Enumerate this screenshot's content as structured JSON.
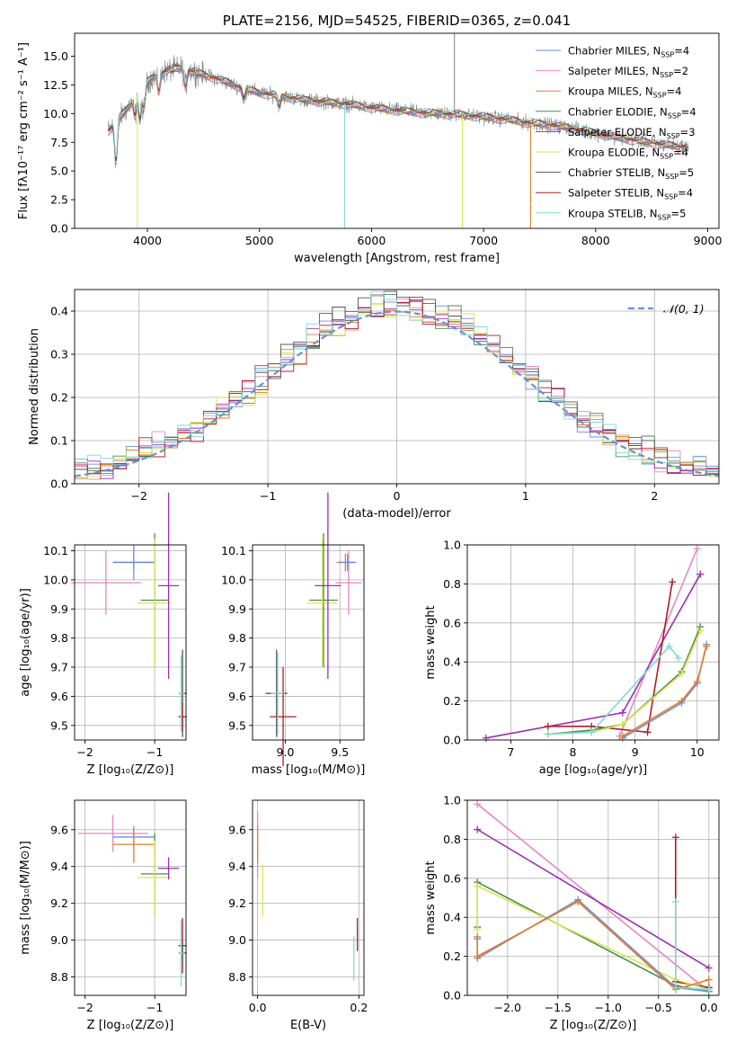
{
  "colors": {
    "chabrier_miles": "#6b8fd6",
    "salpeter_miles": "#e886c4",
    "kroupa_miles": "#e27d2a",
    "chabrier_elodie": "#4a8a5a",
    "salpeter_elodie": "#9b30b0",
    "kroupa_elodie": "#d6e84a",
    "chabrier_stelib": "#555555",
    "salpeter_stelib": "#b01c24",
    "kroupa_stelib": "#7fd8d8",
    "data": "#808080",
    "grid": "#b0b0b0"
  },
  "chart_data": [
    {
      "id": "spectrum",
      "type": "line",
      "title": "PLATE=2156, MJD=54525, FIBERID=0365, z=0.041",
      "xlabel": "wavelength [Angstrom, rest frame]",
      "ylabel": "Flux [fλ10⁻¹⁷ erg cm⁻² s⁻¹ A⁻¹]",
      "xlim": [
        3350,
        9100
      ],
      "ylim": [
        0,
        17
      ],
      "xticks": [
        "4000",
        "5000",
        "6000",
        "7000",
        "8000",
        "9000"
      ],
      "yticks": [
        "0.0",
        "2.5",
        "5.0",
        "7.5",
        "10.0",
        "12.5",
        "15.0"
      ],
      "grid": false,
      "legend_position": "top-right",
      "legend": [
        {
          "name": "Chabrier MILES, N_SSP=4",
          "color_key": "chabrier_miles"
        },
        {
          "name": "Salpeter MILES, N_SSP=2",
          "color_key": "salpeter_miles"
        },
        {
          "name": "Kroupa MILES, N_SSP=4",
          "color_key": "kroupa_miles"
        },
        {
          "name": "Chabrier ELODIE, N_SSP=4",
          "color_key": "chabrier_elodie"
        },
        {
          "name": "Salpeter ELODIE, N_SSP=3",
          "color_key": "salpeter_elodie"
        },
        {
          "name": "Kroupa ELODIE, N_SSP=4",
          "color_key": "kroupa_elodie"
        },
        {
          "name": "Chabrier STELIB, N_SSP=5",
          "color_key": "chabrier_stelib"
        },
        {
          "name": "Salpeter STELIB, N_SSP=4",
          "color_key": "salpeter_stelib"
        },
        {
          "name": "Kroupa STELIB, N_SSP=5",
          "color_key": "kroupa_stelib"
        }
      ],
      "continuum": {
        "x": [
          3650,
          3700,
          3800,
          3900,
          4000,
          4100,
          4200,
          4300,
          4400,
          4500,
          4600,
          4800,
          5000,
          5200,
          5400,
          5600,
          5800,
          6000,
          6200,
          6400,
          6600,
          6800,
          7000,
          7200,
          7400,
          7600,
          7800,
          8000,
          8200,
          8400,
          8600,
          8800
        ],
        "y": [
          8.5,
          9.0,
          10.2,
          11.5,
          12.8,
          13.5,
          13.8,
          14.0,
          13.7,
          13.4,
          13.1,
          12.4,
          11.8,
          11.5,
          11.2,
          11.0,
          10.8,
          10.5,
          10.3,
          10.1,
          10.0,
          9.9,
          9.7,
          9.5,
          9.2,
          9.0,
          8.7,
          8.3,
          7.9,
          7.6,
          7.3,
          7.1
        ]
      },
      "dips": [
        {
          "x": 3720,
          "depth": 3.5
        },
        {
          "x": 3890,
          "depth": 1.5
        },
        {
          "x": 3934,
          "depth": 2.5
        },
        {
          "x": 3969,
          "depth": 2.0
        },
        {
          "x": 4102,
          "depth": 1.5
        },
        {
          "x": 4340,
          "depth": 1.5
        },
        {
          "x": 4861,
          "depth": 1.0
        },
        {
          "x": 5175,
          "depth": 0.8
        }
      ],
      "spikes": [
        {
          "x": 5760,
          "bottom": 0,
          "series": "kroupa_stelib"
        },
        {
          "x": 3910,
          "bottom": 0,
          "series": "kroupa_elodie"
        },
        {
          "x": 6810,
          "bottom": 0,
          "series": "kroupa_elodie"
        },
        {
          "x": 7420,
          "bottom": 0,
          "series": "kroupa_miles"
        },
        {
          "x": 6740,
          "top": 17,
          "series": "data"
        }
      ]
    },
    {
      "id": "residuals",
      "type": "bar",
      "xlabel": "(data-model)/error",
      "ylabel": "Normed distribution",
      "xlim": [
        -2.5,
        2.5
      ],
      "ylim": [
        0,
        0.45
      ],
      "xticks": [
        "−2",
        "−1",
        "0",
        "1",
        "2"
      ],
      "yticks": [
        "0.0",
        "0.1",
        "0.2",
        "0.3",
        "0.4"
      ],
      "grid": true,
      "bin_width": 0.1,
      "legend_position": "top-right",
      "legend": [
        {
          "name": "𝒩(0, 1)",
          "color": "#6b8fd6",
          "style": "dashed"
        }
      ]
    },
    {
      "id": "age-vs-Z",
      "type": "scatter",
      "xlabel": "Z [log₁₀(Z/Z⊙)]",
      "ylabel": "age  [log₁₀(age/yr)]",
      "xlim": [
        -2.15,
        -0.55
      ],
      "ylim": [
        9.45,
        10.12
      ],
      "xticks": [
        "−2",
        "−1"
      ],
      "yticks": [
        "9.5",
        "9.6",
        "9.7",
        "9.8",
        "9.9",
        "10.0",
        "10.1"
      ],
      "grid": true,
      "points": [
        {
          "series": "salpeter_miles",
          "x": -1.7,
          "y": 9.99,
          "xerr": 0.5,
          "yerr": 0.11
        },
        {
          "series": "kroupa_miles",
          "x": -1.3,
          "y": 10.06,
          "xerr": 0.3,
          "yerr": 0.03
        },
        {
          "series": "chabrier_miles",
          "x": -1.3,
          "y": 10.06,
          "xerr": 0.3,
          "yerr": 0.06
        },
        {
          "series": "chabrier_elodie",
          "x": -1.0,
          "y": 9.93,
          "xerr": 0.2,
          "yerr": 0.23
        },
        {
          "series": "kroupa_elodie",
          "x": -1.0,
          "y": 9.92,
          "xerr": 0.25,
          "yerr": 0.22
        },
        {
          "series": "salpeter_elodie",
          "x": -0.8,
          "y": 9.98,
          "xerr": 0.15,
          "yerr": 0.32
        },
        {
          "series": "chabrier_stelib",
          "x": -0.6,
          "y": 9.61,
          "xerr": 0.06,
          "yerr": 0.15
        },
        {
          "series": "salpeter_stelib",
          "x": -0.6,
          "y": 9.53,
          "xerr": 0.06,
          "yerr": 0.05
        },
        {
          "series": "kroupa_stelib",
          "x": -0.62,
          "y": 9.61,
          "xerr": 0.04,
          "yerr": 0.13
        }
      ]
    },
    {
      "id": "age-vs-mass",
      "type": "scatter",
      "xlabel": "mass [log₁₀(M/M⊙)]",
      "ylabel": "",
      "xlim": [
        8.7,
        9.72
      ],
      "ylim": [
        9.45,
        10.12
      ],
      "xticks": [
        "9.0",
        "9.5"
      ],
      "yticks": [
        "9.5",
        "9.6",
        "9.7",
        "9.8",
        "9.9",
        "10.0",
        "10.1"
      ],
      "grid": true,
      "points": [
        {
          "series": "salpeter_miles",
          "x": 9.58,
          "y": 9.99,
          "xerr": 0.12,
          "yerr": 0.11
        },
        {
          "series": "kroupa_miles",
          "x": 9.55,
          "y": 10.06,
          "xerr": 0.08,
          "yerr": 0.03
        },
        {
          "series": "chabrier_miles",
          "x": 9.57,
          "y": 10.06,
          "xerr": 0.08,
          "yerr": 0.03
        },
        {
          "series": "chabrier_elodie",
          "x": 9.35,
          "y": 9.93,
          "xerr": 0.13,
          "yerr": 0.23
        },
        {
          "series": "kroupa_elodie",
          "x": 9.34,
          "y": 9.92,
          "xerr": 0.14,
          "yerr": 0.22
        },
        {
          "series": "salpeter_elodie",
          "x": 9.39,
          "y": 9.98,
          "xerr": 0.12,
          "yerr": 0.32
        },
        {
          "series": "chabrier_stelib",
          "x": 8.92,
          "y": 9.61,
          "xerr": 0.1,
          "yerr": 0.15
        },
        {
          "series": "salpeter_stelib",
          "x": 8.98,
          "y": 9.53,
          "xerr": 0.12,
          "yerr": 0.17
        },
        {
          "series": "kroupa_stelib",
          "x": 8.93,
          "y": 9.61,
          "xerr": 0.06,
          "yerr": 0.14
        }
      ]
    },
    {
      "id": "weight-vs-age",
      "type": "line",
      "xlabel": "age  [log₁₀(age/yr)]",
      "ylabel": "mass weight",
      "xlim": [
        6.3,
        10.35
      ],
      "ylim": [
        0,
        1
      ],
      "xticks": [
        "7",
        "8",
        "9",
        "10"
      ],
      "yticks": [
        "0.0",
        "0.2",
        "0.4",
        "0.6",
        "0.8",
        "1.0"
      ],
      "grid": true,
      "series": [
        {
          "name": "salpeter_miles",
          "x": [
            8.75,
            10.0
          ],
          "y": [
            0.02,
            0.98
          ]
        },
        {
          "name": "salpeter_elodie",
          "x": [
            6.6,
            8.8,
            10.05
          ],
          "y": [
            0.01,
            0.14,
            0.85
          ]
        },
        {
          "name": "salpeter_stelib",
          "x": [
            7.6,
            8.3,
            9.2,
            9.6
          ],
          "y": [
            0.07,
            0.07,
            0.04,
            0.81
          ]
        },
        {
          "name": "chabrier_elodie",
          "x": [
            7.6,
            8.3,
            8.8,
            9.75,
            10.05
          ],
          "y": [
            0.03,
            0.05,
            0.08,
            0.35,
            0.58
          ]
        },
        {
          "name": "kroupa_elodie",
          "x": [
            7.6,
            8.3,
            8.8,
            9.75,
            10.05
          ],
          "y": [
            0.03,
            0.04,
            0.08,
            0.34,
            0.56
          ]
        },
        {
          "name": "chabrier_miles",
          "x": [
            8.8,
            9.75,
            10.0,
            10.15
          ],
          "y": [
            0.01,
            0.19,
            0.29,
            0.49
          ]
        },
        {
          "name": "kroupa_miles",
          "x": [
            8.8,
            9.75,
            10.0,
            10.15
          ],
          "y": [
            0.02,
            0.2,
            0.3,
            0.48
          ]
        },
        {
          "name": "kroupa_stelib",
          "x": [
            7.6,
            8.3,
            9.55,
            9.7
          ],
          "y": [
            0.03,
            0.04,
            0.48,
            0.42
          ]
        }
      ]
    },
    {
      "id": "mass-vs-Z",
      "type": "scatter",
      "xlabel": "Z [log₁₀(Z/Z⊙)]",
      "ylabel": "mass [log₁₀(M/M⊙)]",
      "xlim": [
        -2.15,
        -0.55
      ],
      "ylim": [
        8.7,
        9.76
      ],
      "xticks": [
        "−2",
        "−1"
      ],
      "yticks": [
        "8.8",
        "9.0",
        "9.2",
        "9.4",
        "9.6"
      ],
      "grid": true,
      "points": [
        {
          "series": "salpeter_miles",
          "x": -1.6,
          "y": 9.58,
          "xerr": 0.5,
          "yerr": 0.1
        },
        {
          "series": "chabrier_miles",
          "x": -1.3,
          "y": 9.56,
          "xerr": 0.3,
          "yerr": 0.05
        },
        {
          "series": "kroupa_miles",
          "x": -1.3,
          "y": 9.52,
          "xerr": 0.3,
          "yerr": 0.1
        },
        {
          "series": "chabrier_elodie",
          "x": -1.0,
          "y": 9.36,
          "xerr": 0.2,
          "yerr": 0.22
        },
        {
          "series": "kroupa_elodie",
          "x": -1.0,
          "y": 9.34,
          "xerr": 0.25,
          "yerr": 0.2
        },
        {
          "series": "salpeter_elodie",
          "x": -0.8,
          "y": 9.39,
          "xerr": 0.15,
          "yerr": 0.06
        },
        {
          "series": "salpeter_stelib",
          "x": -0.6,
          "y": 8.97,
          "xerr": 0.06,
          "yerr": 0.15
        },
        {
          "series": "chabrier_stelib",
          "x": -0.6,
          "y": 8.93,
          "xerr": 0.06,
          "yerr": 0.06
        },
        {
          "series": "kroupa_stelib",
          "x": -0.62,
          "y": 8.93,
          "xerr": 0.04,
          "yerr": 0.18
        }
      ]
    },
    {
      "id": "mass-vs-ebv",
      "type": "scatter",
      "xlabel": "E(B-V)",
      "ylabel": "",
      "xlim": [
        -0.01,
        0.21
      ],
      "ylim": [
        8.7,
        9.76
      ],
      "xticks": [
        "0.0",
        "0.2"
      ],
      "yticks": [
        "8.8",
        "9.0",
        "9.2",
        "9.4",
        "9.6"
      ],
      "grid": true,
      "points": [
        {
          "series": "salpeter_miles",
          "x": 0.0,
          "y": 9.52,
          "xerr": 0.0,
          "yerr": 0.18
        },
        {
          "series": "kroupa_miles",
          "x": 0.0,
          "y": 9.52,
          "xerr": 0.0,
          "yerr": 0.1
        },
        {
          "series": "kroupa_elodie",
          "x": 0.01,
          "y": 9.27,
          "xerr": 0.0,
          "yerr": 0.14
        },
        {
          "series": "salpeter_stelib",
          "x": 0.197,
          "y": 9.03,
          "xerr": 0.0,
          "yerr": 0.09
        },
        {
          "series": "kroupa_stelib",
          "x": 0.19,
          "y": 8.9,
          "xerr": 0.0,
          "yerr": 0.12
        }
      ]
    },
    {
      "id": "weight-vs-Z",
      "type": "line",
      "xlabel": "Z [log₁₀(Z/Z⊙)]",
      "ylabel": "mass weight",
      "xlim": [
        -2.4,
        0.1
      ],
      "ylim": [
        0,
        1
      ],
      "xticks": [
        "−2.0",
        "−1.5",
        "−1.0",
        "−0.5",
        "0.0"
      ],
      "yticks": [
        "0.0",
        "0.2",
        "0.4",
        "0.6",
        "0.8",
        "1.0"
      ],
      "grid": true,
      "series": [
        {
          "name": "salpeter_miles",
          "x": [
            -2.3,
            0.0
          ],
          "y": [
            0.98,
            0.02
          ]
        },
        {
          "name": "salpeter_elodie",
          "x": [
            -2.3,
            0.0
          ],
          "y": [
            0.85,
            0.14
          ]
        },
        {
          "name": "salpeter_stelib",
          "x": [
            -0.33,
            -0.33,
            0.0
          ],
          "y": [
            0.81,
            0.07,
            0.04
          ]
        },
        {
          "name": "chabrier_elodie",
          "x": [
            -2.3,
            -2.3,
            -0.33,
            0.0
          ],
          "y": [
            0.35,
            0.58,
            0.05,
            0.02
          ]
        },
        {
          "name": "kroupa_elodie",
          "x": [
            -2.3,
            -2.3,
            -0.33,
            0.0
          ],
          "y": [
            0.34,
            0.56,
            0.08,
            0.03
          ]
        },
        {
          "name": "chabrier_miles",
          "x": [
            -2.3,
            -2.3,
            -1.3,
            -0.33,
            0.0
          ],
          "y": [
            0.29,
            0.19,
            0.49,
            0.04,
            0.02
          ]
        },
        {
          "name": "kroupa_miles",
          "x": [
            -2.3,
            -2.3,
            -1.3,
            -0.33,
            0.0
          ],
          "y": [
            0.3,
            0.2,
            0.48,
            0.03,
            0.08
          ]
        },
        {
          "name": "kroupa_stelib",
          "x": [
            -0.33,
            -0.33,
            0.0
          ],
          "y": [
            0.48,
            0.04,
            0.03
          ]
        }
      ]
    }
  ]
}
